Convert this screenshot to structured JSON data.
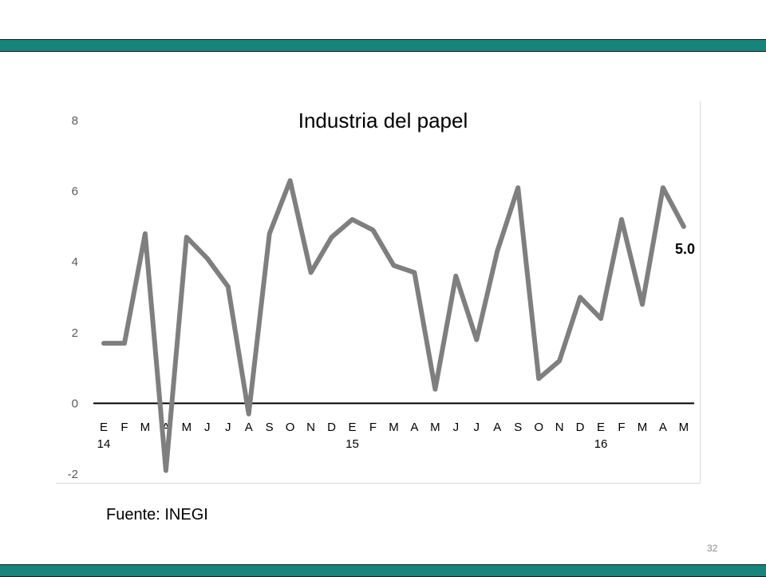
{
  "colors": {
    "band": "#16857b",
    "line": "#7f7f7f",
    "axis": "#000000",
    "text": "#595959"
  },
  "page_number": "32",
  "source": "Fuente: INEGI",
  "chart_data": {
    "type": "line",
    "title": "Industria del papel",
    "xlabel": "",
    "ylabel": "",
    "ylim": [
      -2,
      8
    ],
    "yticks": [
      "8",
      "6",
      "4",
      "2",
      "0",
      "-2"
    ],
    "categories": [
      "E",
      "F",
      "M",
      "A",
      "M",
      "J",
      "J",
      "A",
      "S",
      "O",
      "N",
      "D",
      "E",
      "F",
      "M",
      "A",
      "M",
      "J",
      "J",
      "A",
      "S",
      "O",
      "N",
      "D",
      "E",
      "F",
      "M",
      "A",
      "M"
    ],
    "year_labels": [
      {
        "index": 0,
        "label": "14"
      },
      {
        "index": 12,
        "label": "15"
      },
      {
        "index": 24,
        "label": "16"
      }
    ],
    "series": [
      {
        "values": [
          1.7,
          1.7,
          4.8,
          -1.9,
          4.7,
          4.1,
          3.3,
          -0.3,
          4.8,
          6.3,
          3.7,
          4.7,
          5.2,
          4.9,
          3.9,
          3.7,
          0.4,
          3.6,
          1.8,
          4.3,
          6.1,
          0.7,
          1.2,
          3.0,
          2.4,
          5.2,
          2.8,
          6.1,
          5.0
        ]
      }
    ],
    "annotations": [
      {
        "index": 28,
        "text": "5.0"
      }
    ],
    "grid": false
  }
}
